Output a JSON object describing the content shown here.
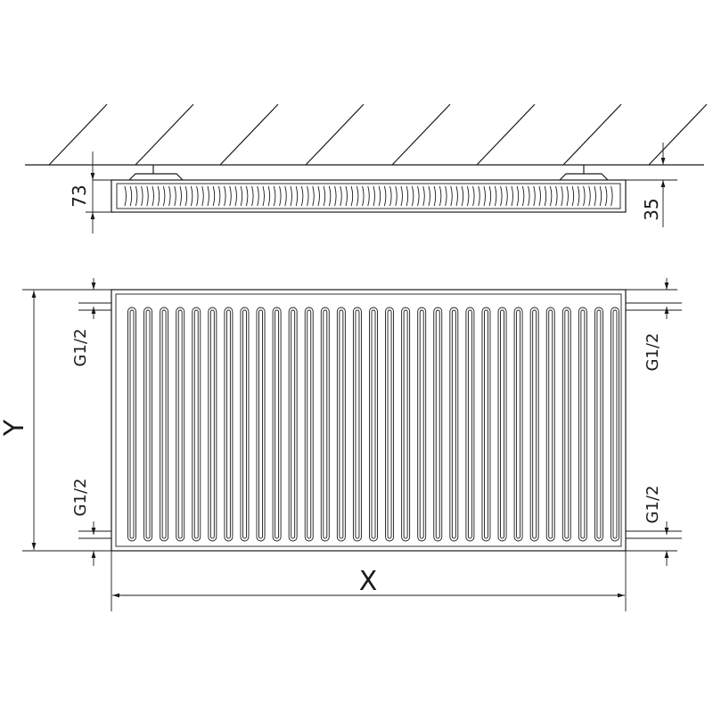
{
  "diagram": {
    "side_view": {
      "depth_label": "73",
      "wall_gap_label": "35"
    },
    "front_view": {
      "height_label": "Y",
      "width_label": "X",
      "connections": {
        "left_top": "G1/2",
        "left_bottom": "G1/2",
        "right_top": "G1/2",
        "right_bottom": "G1/2"
      }
    },
    "colors": {
      "line": "#1a1a1a",
      "background": "#ffffff"
    }
  }
}
